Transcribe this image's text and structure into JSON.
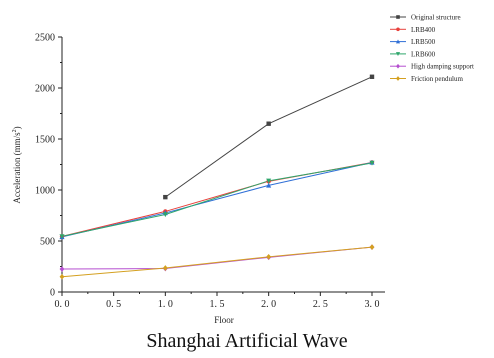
{
  "caption": "Shanghai Artificial Wave",
  "chart_data": {
    "type": "line",
    "xlabel": "Floor",
    "ylabel_main": "Acceleration",
    "ylabel_unit": "(mm/s",
    "ylabel_exp": "2",
    "ylabel_close": ")",
    "xlim": [
      0,
      3
    ],
    "ylim": [
      0,
      2500
    ],
    "x_ticks": [
      0,
      0.5,
      1,
      1.5,
      2,
      2.5,
      3
    ],
    "x_tick_labels": [
      "0. 0",
      "0. 5",
      "1. 0",
      "1. 5",
      "2. 0",
      "2. 5",
      "3. 0"
    ],
    "y_ticks": [
      0,
      500,
      1000,
      1500,
      2000,
      2500
    ],
    "y_tick_labels": [
      "0",
      "500",
      "1000",
      "1500",
      "2000",
      "2500"
    ],
    "grid": false,
    "legend_position": "top-right",
    "series": [
      {
        "name": "Original structure",
        "color": "#444444",
        "marker": "square",
        "x": [
          1,
          2,
          3
        ],
        "y": [
          930,
          1650,
          2110
        ]
      },
      {
        "name": "LRB400",
        "color": "#e8413c",
        "marker": "circle",
        "x": [
          0,
          1,
          2,
          3
        ],
        "y": [
          545,
          790,
          1085,
          1270
        ]
      },
      {
        "name": "LRB500",
        "color": "#2f6fd6",
        "marker": "triangle-up",
        "x": [
          0,
          1,
          2,
          3
        ],
        "y": [
          540,
          775,
          1045,
          1270
        ]
      },
      {
        "name": "LRB600",
        "color": "#2ea66b",
        "marker": "triangle-down",
        "x": [
          0,
          1,
          2,
          3
        ],
        "y": [
          545,
          760,
          1090,
          1265
        ]
      },
      {
        "name": "High damping support",
        "color": "#b54fd0",
        "marker": "diamond",
        "x": [
          0,
          1,
          2,
          3
        ],
        "y": [
          225,
          230,
          340,
          440
        ]
      },
      {
        "name": "Friction pendulum",
        "color": "#d4a020",
        "marker": "diamond",
        "x": [
          0,
          1,
          2,
          3
        ],
        "y": [
          150,
          235,
          345,
          440
        ]
      }
    ]
  }
}
